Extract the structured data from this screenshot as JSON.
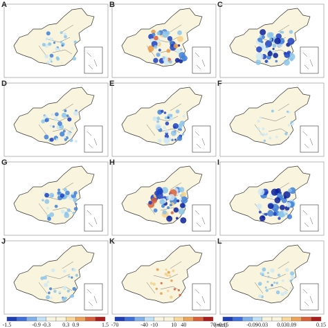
{
  "panels": [
    {
      "label": "A"
    },
    {
      "label": "B"
    },
    {
      "label": "C"
    },
    {
      "label": "D"
    },
    {
      "label": "E"
    },
    {
      "label": "F"
    },
    {
      "label": "G"
    },
    {
      "label": "H"
    },
    {
      "label": "I"
    },
    {
      "label": "J"
    },
    {
      "label": "K"
    },
    {
      "label": "L"
    }
  ],
  "colorbars": [
    {
      "ticks": [
        "-1.5",
        "-0.9",
        "-0.3",
        "0.3",
        "0.9",
        "1.5"
      ]
    },
    {
      "ticks": [
        "-70",
        "-40",
        "-10",
        "10",
        "40",
        "70"
      ],
      "unit": "(mm)"
    },
    {
      "ticks": [
        "-0.15",
        "-0.09",
        "-0.03",
        "0.03",
        "0.09",
        "0.15"
      ]
    }
  ]
}
